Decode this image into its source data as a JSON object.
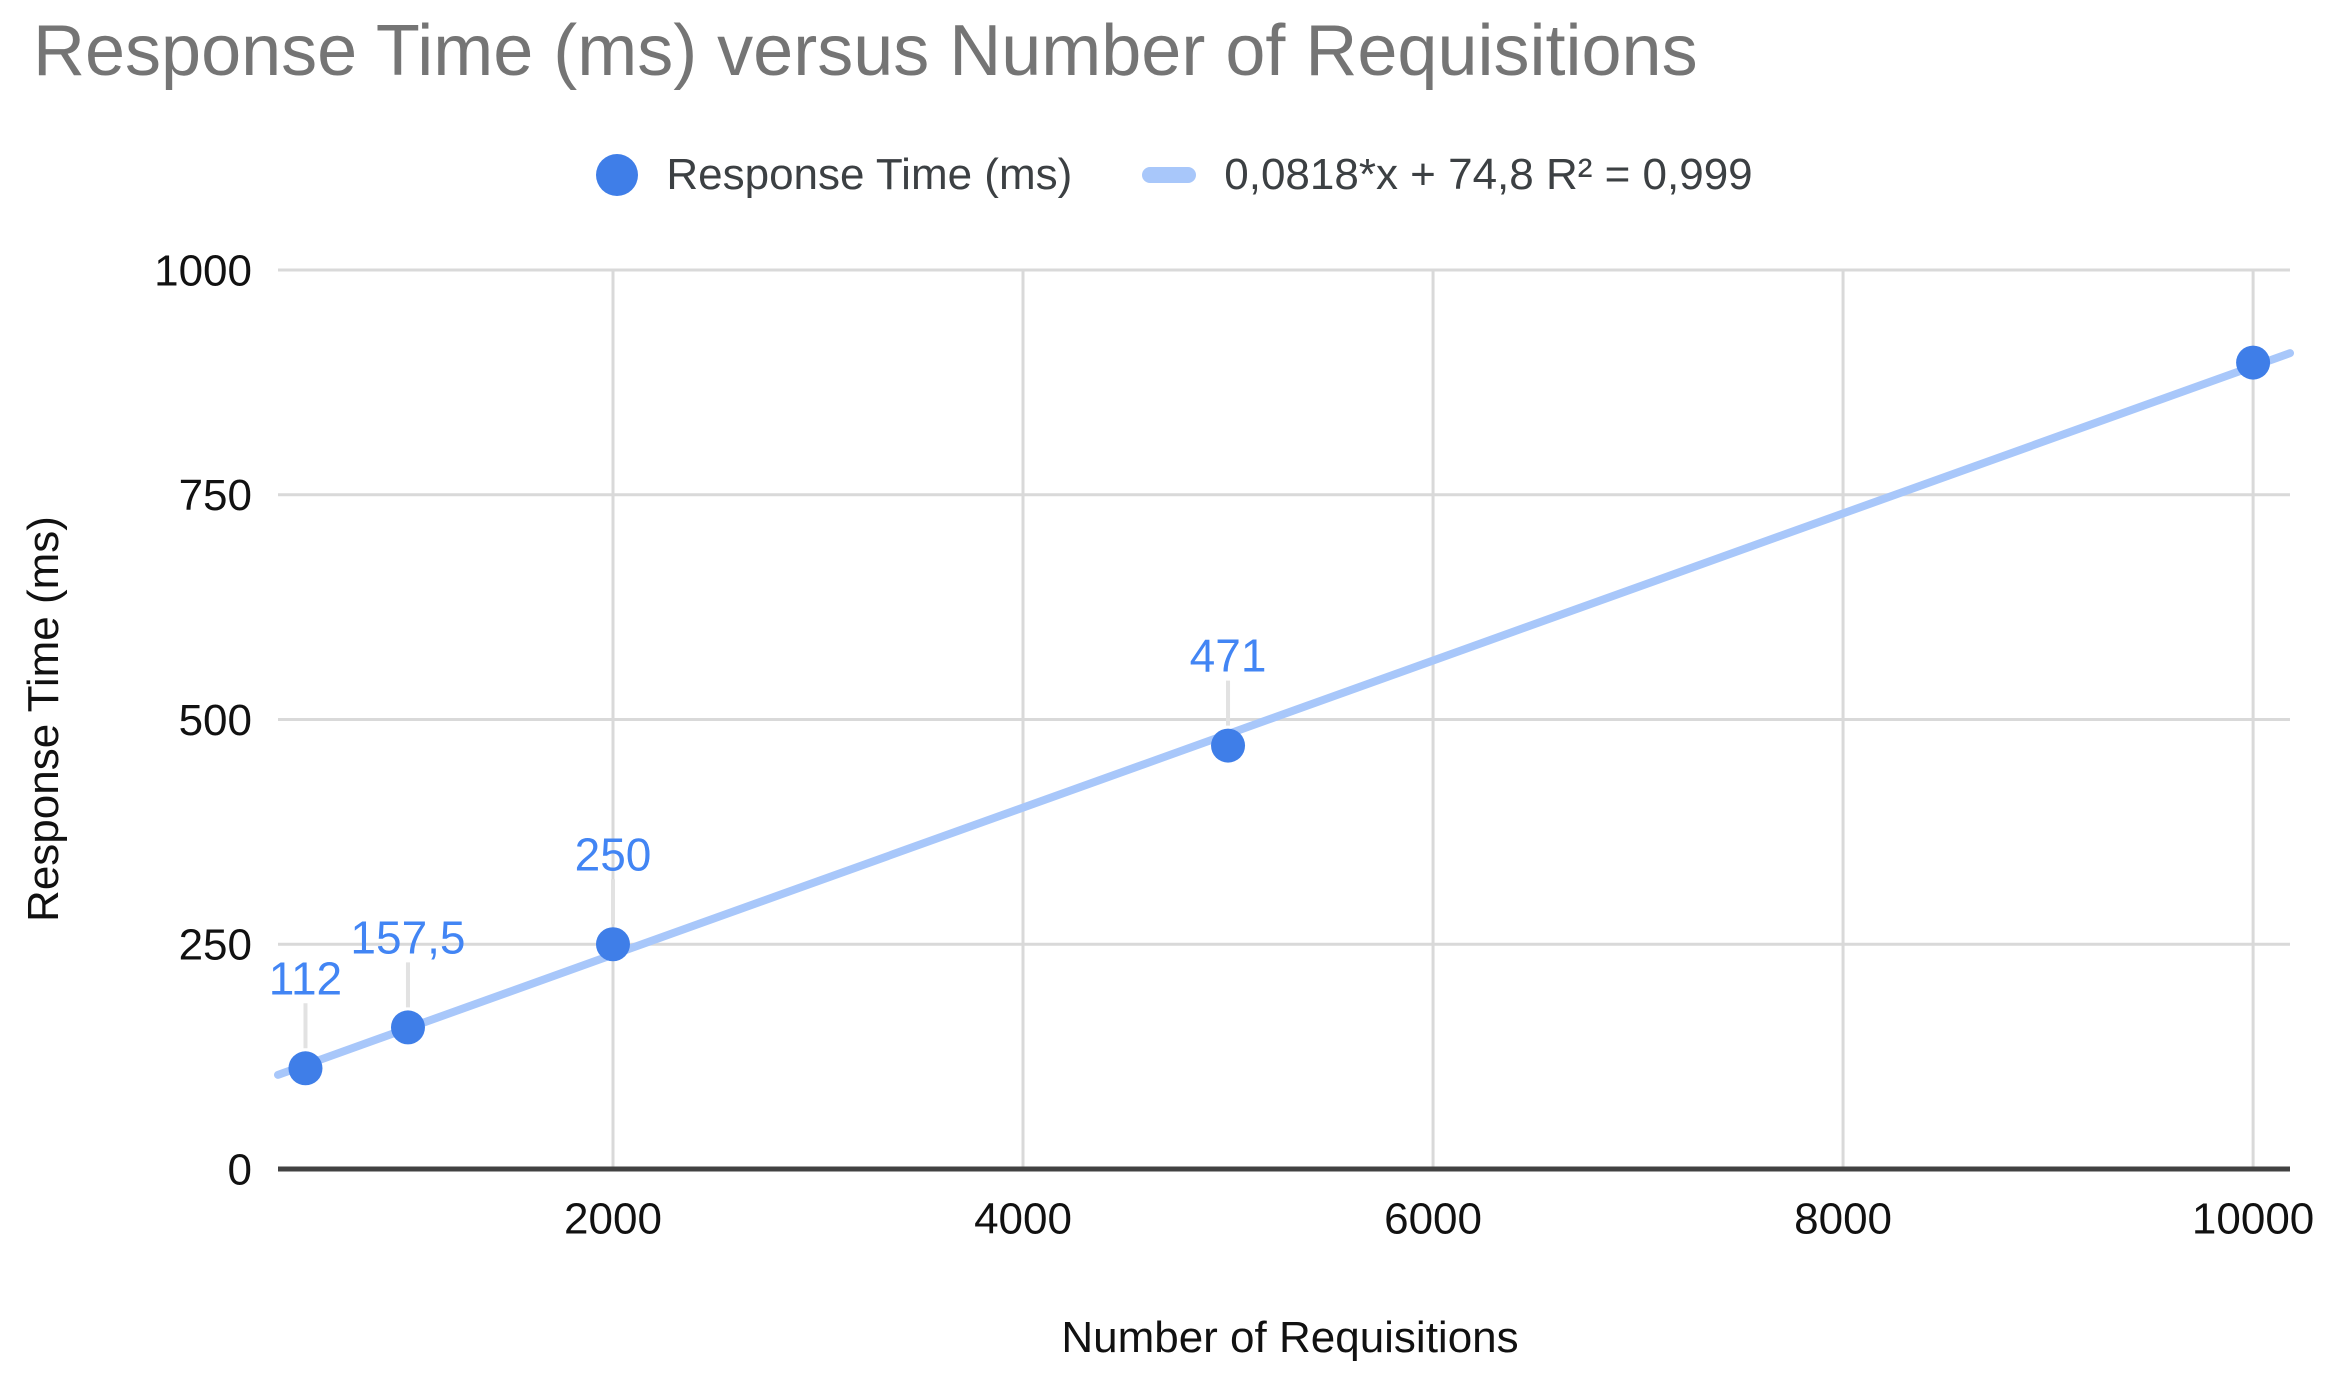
{
  "title": "Response Time (ms) versus Number of Requisitions",
  "legend": {
    "series_label": "Response Time (ms)",
    "trend_label": "0,0818*x + 74,8 R² = 0,999"
  },
  "colors": {
    "title_text": "#757575",
    "legend_text": "#3c4043",
    "series_point": "#3f7ee8",
    "trendline": "#a8c7fa",
    "data_label": "#4285f4",
    "gridline": "#d9d9d9",
    "baseline": "#424242",
    "axis_label_text": "#111111",
    "label_stem": "#e2e2e2",
    "background": "#ffffff"
  },
  "chart_data": {
    "type": "scatter",
    "title": "Response Time (ms) versus Number of Requisitions",
    "xlabel": "Number of Requisitions",
    "ylabel": "Response Time (ms)",
    "legend_position": "top",
    "grid": true,
    "x_ticks": [
      2000,
      4000,
      6000,
      8000,
      10000
    ],
    "y_ticks": [
      0,
      250,
      500,
      750,
      1000
    ],
    "xlim": [
      366,
      10180
    ],
    "ylim": [
      0,
      1000
    ],
    "series": [
      {
        "name": "Response Time (ms)",
        "points": [
          {
            "x": 500,
            "y": 112,
            "label": "112"
          },
          {
            "x": 1000,
            "y": 157.5,
            "label": "157,5"
          },
          {
            "x": 2000,
            "y": 250,
            "label": "250"
          },
          {
            "x": 5000,
            "y": 471,
            "label": "471"
          },
          {
            "x": 10000,
            "y": 897,
            "label": null
          }
        ]
      }
    ],
    "trendline": {
      "slope": 0.0818,
      "intercept": 74.8,
      "r2": 0.999,
      "equation_label": "0,0818*x + 74,8 R² = 0,999"
    }
  }
}
